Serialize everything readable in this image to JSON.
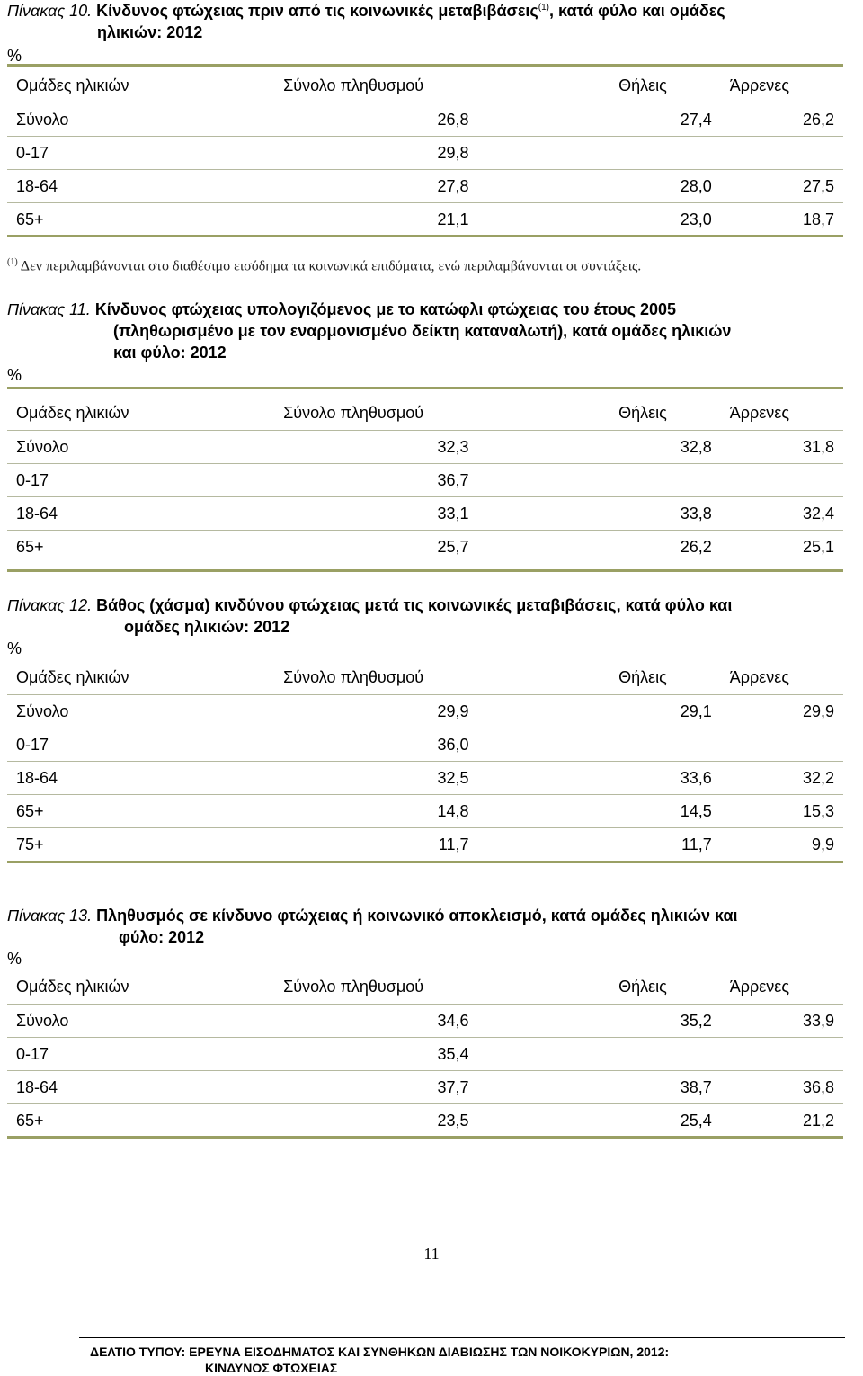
{
  "table10": {
    "label": "Πίνακας 10.",
    "title_line1": "Κίνδυνος φτώχειας πριν από  τις κοινωνικές μεταβιβάσεις",
    "sup": "(1)",
    "title_line1_end": ", κατά φύλο και ομάδες",
    "title_line2": "ηλικιών: 2012",
    "unit": "%",
    "headers": [
      "Ομάδες ηλικιών",
      "Σύνολο πληθυσμού",
      "Θήλεις",
      "Άρρενες"
    ],
    "rows": [
      [
        "Σύνολο",
        "26,8",
        "27,4",
        "26,2"
      ],
      [
        "0-17",
        "29,8",
        "",
        ""
      ],
      [
        "18-64",
        "27,8",
        "28,0",
        "27,5"
      ],
      [
        "65+",
        "21,1",
        "23,0",
        "18,7"
      ]
    ],
    "footnote_mark": "(1)",
    "footnote": " Δεν περιλαμβάνονται στο διαθέσιμο εισόδημα τα κοινωνικά επιδόματα, ενώ περιλαμβάνονται οι συντάξεις."
  },
  "table11": {
    "label": "Πίνακας 11.",
    "title_line1": "Κίνδυνος φτώχειας υπολογιζόμενος με το κατώφλι φτώχειας του έτους 2005",
    "title_line2": "(πληθωρισμένο  με τον εναρμονισμένο δείκτη καταναλωτή), κατά ομάδες ηλικιών",
    "title_line3": "και φύλο: 2012",
    "unit": "%",
    "headers": [
      "Ομάδες ηλικιών",
      "Σύνολο πληθυσμού",
      "Θήλεις",
      "Άρρενες"
    ],
    "rows": [
      [
        "Σύνολο",
        "32,3",
        "32,8",
        "31,8"
      ],
      [
        "0-17",
        "36,7",
        "",
        ""
      ],
      [
        "18-64",
        "33,1",
        "33,8",
        "32,4"
      ],
      [
        "65+",
        "25,7",
        "26,2",
        "25,1"
      ]
    ]
  },
  "table12": {
    "label": "Πίνακας 12.",
    "title_line1": "Βάθος (χάσμα) κινδύνου φτώχειας μετά τις κοινωνικές μεταβιβάσεις, κατά φύλο και",
    "title_line2": "ομάδες ηλικιών: 2012",
    "unit": "%",
    "headers": [
      "Ομάδες ηλικιών",
      "Σύνολο πληθυσμού",
      "Θήλεις",
      "Άρρενες"
    ],
    "rows": [
      [
        "Σύνολο",
        "29,9",
        "29,1",
        "29,9"
      ],
      [
        "0-17",
        "36,0",
        "",
        ""
      ],
      [
        "18-64",
        "32,5",
        "33,6",
        "32,2"
      ],
      [
        "65+",
        "14,8",
        "14,5",
        "15,3"
      ],
      [
        "75+",
        "11,7",
        "11,7",
        "9,9"
      ]
    ]
  },
  "table13": {
    "label": "Πίνακας 13.",
    "title_line1": "Πληθυσμός σε κίνδυνο φτώχειας ή  κοινωνικό αποκλεισμό, κατά ομάδες ηλικιών και",
    "title_line2": "φύλο: 2012",
    "unit": "%",
    "headers": [
      "Ομάδες ηλικιών",
      "Σύνολο πληθυσμού",
      "Θήλεις",
      "Άρρενες"
    ],
    "rows": [
      [
        "Σύνολο",
        "34,6",
        "35,2",
        "33,9"
      ],
      [
        "0-17",
        "35,4",
        "",
        ""
      ],
      [
        "18-64",
        "37,7",
        "38,7",
        "36,8"
      ],
      [
        "65+",
        "23,5",
        "25,4",
        "21,2"
      ]
    ]
  },
  "page_number": "11",
  "footer": {
    "line1": "ΔΕΛΤΙΟ ΤΥΠΟΥ:  ΕΡΕΥΝΑ ΕΙΣΟΔΗΜΑΤΟΣ ΚΑΙ ΣΥΝΘΗΚΩΝ ΔΙΑΒΙΩΣΗΣ ΤΩΝ ΝΟΙΚΟΚΥΡΙΩΝ, 2012:",
    "line2": "ΚΙΝΔΥΝΟΣ ΦΤΩΧΕΙΑΣ"
  }
}
